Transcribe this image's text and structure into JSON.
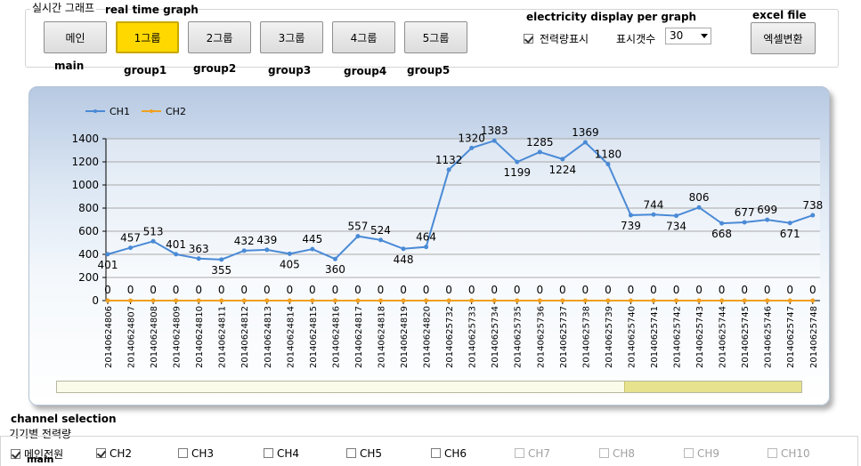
{
  "header": {
    "group_title": "실시간 그래프",
    "annotation_realtime": "real time graph",
    "annotation_electricity": "electricity display per graph",
    "annotation_excel": "excel file"
  },
  "nav_buttons": [
    {
      "label": "메인",
      "caption": "main",
      "active": false
    },
    {
      "label": "1그룹",
      "caption": "group1",
      "active": true
    },
    {
      "label": "2그룹",
      "caption": "group2",
      "active": false
    },
    {
      "label": "3그룹",
      "caption": "group3",
      "active": false
    },
    {
      "label": "4그룹",
      "caption": "group4",
      "active": false
    },
    {
      "label": "5그룹",
      "caption": "group5",
      "active": false
    }
  ],
  "power_display": {
    "label": "전력량표시",
    "checked": true
  },
  "display_count": {
    "label": "표시갯수",
    "value": "30"
  },
  "excel_button": {
    "label": "엑셀변환"
  },
  "chart_data": {
    "type": "line",
    "title": "",
    "xlabel": "",
    "ylabel": "",
    "ylim": [
      0,
      1400
    ],
    "yticks": [
      0,
      200,
      400,
      600,
      800,
      1000,
      1200,
      1400
    ],
    "grid": true,
    "legend": "top-left",
    "categories": [
      "20140624806",
      "20140624807",
      "20140624808",
      "20140624809",
      "20140624810",
      "20140624811",
      "20140624812",
      "20140624813",
      "20140624814",
      "20140624815",
      "20140624816",
      "20140624817",
      "20140624818",
      "20140624819",
      "20140624820",
      "20140625732",
      "20140625733",
      "20140625734",
      "20140625735",
      "20140625736",
      "20140625737",
      "20140625738",
      "20140625739",
      "20140625740",
      "20140625741",
      "20140625742",
      "20140625743",
      "20140625744",
      "20140625745",
      "20140625746",
      "20140625747",
      "20140625748"
    ],
    "series": [
      {
        "name": "CH1",
        "color": "#4a8ad6",
        "values": [
          401,
          457,
          513,
          401,
          363,
          355,
          432,
          439,
          405,
          445,
          360,
          557,
          524,
          448,
          464,
          1132,
          1320,
          1383,
          1199,
          1285,
          1224,
          1369,
          1180,
          739,
          744,
          734,
          806,
          668,
          677,
          699,
          671,
          738
        ]
      },
      {
        "name": "CH2",
        "color": "#f0a020",
        "values": [
          0,
          0,
          0,
          0,
          0,
          0,
          0,
          0,
          0,
          0,
          0,
          0,
          0,
          0,
          0,
          0,
          0,
          0,
          0,
          0,
          0,
          0,
          0,
          0,
          0,
          0,
          0,
          0,
          0,
          0,
          0,
          0
        ]
      }
    ]
  },
  "channel_section": {
    "annotation": "channel selection",
    "title": "기기별 전력량",
    "caption_main": "main",
    "channels": [
      {
        "label": "메인전원",
        "checked": true,
        "enabled": true
      },
      {
        "label": "CH2",
        "checked": true,
        "enabled": true
      },
      {
        "label": "CH3",
        "checked": false,
        "enabled": true
      },
      {
        "label": "CH4",
        "checked": false,
        "enabled": true
      },
      {
        "label": "CH5",
        "checked": false,
        "enabled": true
      },
      {
        "label": "CH6",
        "checked": false,
        "enabled": true
      },
      {
        "label": "CH7",
        "checked": false,
        "enabled": false
      },
      {
        "label": "CH8",
        "checked": false,
        "enabled": false
      },
      {
        "label": "CH9",
        "checked": false,
        "enabled": false
      },
      {
        "label": "CH10",
        "checked": false,
        "enabled": false
      }
    ]
  }
}
